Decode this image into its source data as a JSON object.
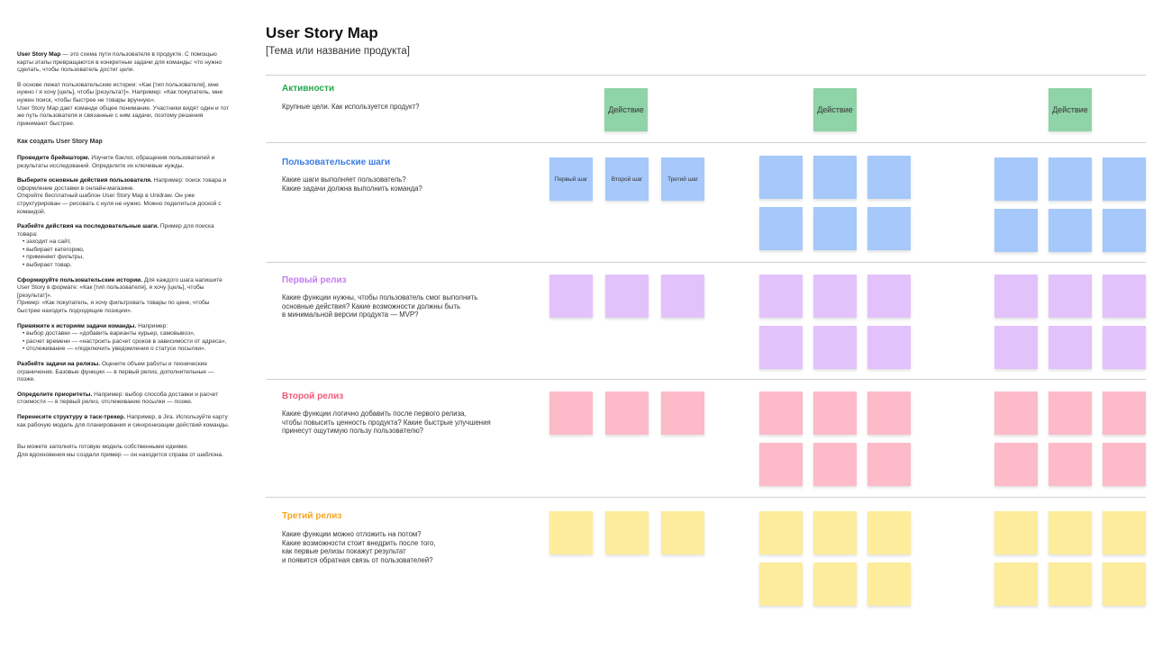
{
  "left_panel": {
    "intro_bold": "User Story Map",
    "intro": " — это схема пути пользователя в продукте. С помощью карты этапы превращаются в конкретные задачи для команды: что нужно сделать, чтобы пользователь достиг цели.",
    "p2": "В основе лежат пользовательские истории: «Как [тип пользователя], мне нужно / я хочу [цель], чтобы [результат]». Например: «Как покупатель, мне нужен поиск, чтобы быстрее не товары вручную».",
    "p3": "User Story Map дает команде общее понимание. Участники видят один и тот же путь пользователя и связанные с ним задачи, поэтому решения принимают быстрее.",
    "howto_title": "Как создать User Story Map",
    "s1_b": "Проведите брейншторм.",
    "s1": " Изучите бэклог, обращения пользователей и результаты исследований. Определите их ключевые нужды.",
    "s2_b": "Выберите основные действия пользователя.",
    "s2": " Например: поиск товара и оформление доставки в онлайн-магазине.",
    "s2b": "Откройте бесплатный шаблон User Story Map в Unidraw. Он уже структурирован — рисовать с нуля не нужно. Можно поделиться доской с командой.",
    "s3_b": "Разбейте действия на последовательные шаги.",
    "s3": " Пример для поиска товара:",
    "s3_list": [
      "заходит на сайт,",
      "выбирает категорию,",
      "применяет фильтры,",
      "выбирает товар."
    ],
    "s4_b": "Сформируйте пользовательские истории.",
    "s4": " Для каждого шага напишите User Story в формате: «Как [тип пользователя], я хочу [цель], чтобы [результат]».",
    "s4b": "Пример: «Как покупатель, я хочу фильтровать товары по цене, чтобы быстрее находить подходящие позиции».",
    "s5_b": "Привяжите к историям задачи команды.",
    "s5": " Например:",
    "s5_list": [
      "выбор доставки — «добавить варианты курьер, самовывоз»,",
      "расчет времени — «настроить расчет сроков в зависимости от адреса»,",
      "отслеживание — «подключить уведомления о статусе посылки»."
    ],
    "s6_b": "Разбейте задачи на релизы.",
    "s6": " Оцените объем работы и технические ограничения. Базовые функции — в первый релиз, дополнительные — позже.",
    "s7_b": "Определите приоритеты.",
    "s7": " Например: выбор способа доставки и расчет стоимости — в первый релиз, отслеживание посылки — позже.",
    "s8_b": "Перенесите структуру в таск-трекер.",
    "s8": " Например, в Jira. Используйте карту как рабочую модель для планирования и синхронизации действий команды.",
    "outro1": "Вы можете заполнять готовую модель собственными идеями.",
    "outro2": "Для вдохновения мы создали пример — он находится справа от шаблона."
  },
  "header": {
    "title": "User Story Map",
    "subtitle": "[Тема или название продукта]"
  },
  "sections": [
    {
      "title": "Активности",
      "color": "#22a84a",
      "sticky_color": "#8fd3a8",
      "desc": "Крупные цели. Как используется продукт?"
    },
    {
      "title": "Пользовательские шаги",
      "color": "#3c7be0",
      "sticky_color": "#a6c8fb",
      "desc": "Какие шаги выполняет пользователь?\nКакие задачи должна выполнить команда?"
    },
    {
      "title": "Первый релиз",
      "color": "#c17ff0",
      "sticky_color": "#e3c2fb",
      "desc": "Какие функции нужны, чтобы пользователь смог выполнить\nосновные действия? Какие возможности должны быть\nв минимальной версии продукта — MVP?"
    },
    {
      "title": "Второй релиз",
      "color": "#f05a78",
      "sticky_color": "#fdbac8",
      "desc": "Какие функции логично добавить после первого релиза,\nчтобы повысить ценность продукта? Какие быстрые улучшения\nпринесут ощутимую пользу пользователю?"
    },
    {
      "title": "Третий релиз",
      "color": "#f5a623",
      "sticky_color": "#fdec9c",
      "desc": "Какие функции можно отложить на потом?\nКакие возможности стоит внедрить после того,\nкак первые релизы покажут результат\nи появится обратная связь от пользователей?"
    }
  ],
  "activity_label": "Действие",
  "step_labels": [
    "Первый шаг",
    "Второй шаг",
    "Третий шаг"
  ]
}
